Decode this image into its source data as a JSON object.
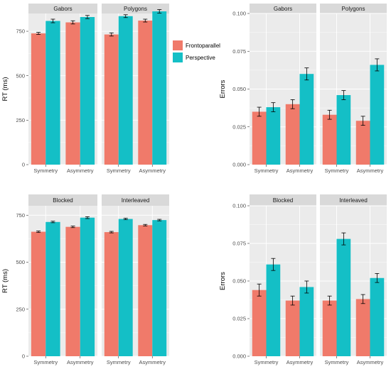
{
  "colors": {
    "Frontoparallel": "#F07A6A",
    "Perspective": "#14BFC6",
    "panel_bg": "#EBEBEB",
    "strip_bg": "#D9D9D9",
    "grid": "#FFFFFF"
  },
  "legend": {
    "entries": [
      "Frontoparallel",
      "Perspective"
    ]
  },
  "chart_data": [
    {
      "type": "bar",
      "xlabel": "",
      "ylabel": "RT (ms)",
      "ylim": [
        0,
        850
      ],
      "yticks": [
        0,
        250,
        500,
        750
      ],
      "y_tick_labels": [
        "0",
        "250",
        "500",
        "750"
      ],
      "grid": true,
      "facets": [
        {
          "strip": "Gabors",
          "categories": [
            "Symmetry",
            "Asymmetry"
          ],
          "series": [
            {
              "name": "Frontoparallel",
              "values": [
                738,
                800
              ],
              "errors": [
                6,
                9
              ]
            },
            {
              "name": "Perspective",
              "values": [
                808,
                830
              ],
              "errors": [
                10,
                9
              ]
            }
          ]
        },
        {
          "strip": "Polygons",
          "categories": [
            "Symmetry",
            "Asymmetry"
          ],
          "series": [
            {
              "name": "Frontoparallel",
              "values": [
                732,
                810
              ],
              "errors": [
                9,
                8
              ]
            },
            {
              "name": "Perspective",
              "values": [
                835,
                862
              ],
              "errors": [
                8,
                10
              ]
            }
          ]
        }
      ]
    },
    {
      "type": "bar",
      "xlabel": "",
      "ylabel": "Errors",
      "ylim": [
        0,
        0.1
      ],
      "yticks": [
        0,
        0.025,
        0.05,
        0.075,
        0.1
      ],
      "y_tick_labels": [
        "0.000",
        "0.025",
        "0.050",
        "0.075",
        "0.100"
      ],
      "grid": true,
      "facets": [
        {
          "strip": "Gabors",
          "categories": [
            "Symmetry",
            "Asymmetry"
          ],
          "series": [
            {
              "name": "Frontoparallel",
              "values": [
                0.035,
                0.04
              ],
              "errors": [
                0.003,
                0.003
              ]
            },
            {
              "name": "Perspective",
              "values": [
                0.038,
                0.06
              ],
              "errors": [
                0.003,
                0.004
              ]
            }
          ]
        },
        {
          "strip": "Polygons",
          "categories": [
            "Symmetry",
            "Asymmetry"
          ],
          "series": [
            {
              "name": "Frontoparallel",
              "values": [
                0.033,
                0.029
              ],
              "errors": [
                0.003,
                0.003
              ]
            },
            {
              "name": "Perspective",
              "values": [
                0.046,
                0.066
              ],
              "errors": [
                0.003,
                0.004
              ]
            }
          ]
        }
      ]
    },
    {
      "type": "bar",
      "xlabel": "",
      "ylabel": "RT (ms)",
      "ylim": [
        0,
        800
      ],
      "yticks": [
        0,
        250,
        500,
        750
      ],
      "y_tick_labels": [
        "0",
        "250",
        "500",
        "750"
      ],
      "grid": true,
      "facets": [
        {
          "strip": "Blocked",
          "categories": [
            "Symmetry",
            "Asymmetry"
          ],
          "series": [
            {
              "name": "Frontoparallel",
              "values": [
                662,
                688
              ],
              "errors": [
                4,
                4
              ]
            },
            {
              "name": "Perspective",
              "values": [
                714,
                737
              ],
              "errors": [
                4,
                5
              ]
            }
          ]
        },
        {
          "strip": "Interleaved",
          "categories": [
            "Symmetry",
            "Asymmetry"
          ],
          "series": [
            {
              "name": "Frontoparallel",
              "values": [
                660,
                697
              ],
              "errors": [
                4,
                4
              ]
            },
            {
              "name": "Perspective",
              "values": [
                730,
                724
              ],
              "errors": [
                4,
                4
              ]
            }
          ]
        }
      ]
    },
    {
      "type": "bar",
      "xlabel": "",
      "ylabel": "Errors",
      "ylim": [
        0,
        0.1
      ],
      "yticks": [
        0,
        0.025,
        0.05,
        0.075,
        0.1
      ],
      "y_tick_labels": [
        "0.000",
        "0.025",
        "0.050",
        "0.075",
        "0.100"
      ],
      "grid": true,
      "facets": [
        {
          "strip": "Blocked",
          "categories": [
            "Symmetry",
            "Asymmetry"
          ],
          "series": [
            {
              "name": "Frontoparallel",
              "values": [
                0.044,
                0.037
              ],
              "errors": [
                0.004,
                0.003
              ]
            },
            {
              "name": "Perspective",
              "values": [
                0.061,
                0.046
              ],
              "errors": [
                0.004,
                0.004
              ]
            }
          ]
        },
        {
          "strip": "Interleaved",
          "categories": [
            "Symmetry",
            "Asymmetry"
          ],
          "series": [
            {
              "name": "Frontoparallel",
              "values": [
                0.037,
                0.038
              ],
              "errors": [
                0.003,
                0.003
              ]
            },
            {
              "name": "Perspective",
              "values": [
                0.078,
                0.052
              ],
              "errors": [
                0.004,
                0.003
              ]
            }
          ]
        }
      ]
    }
  ]
}
